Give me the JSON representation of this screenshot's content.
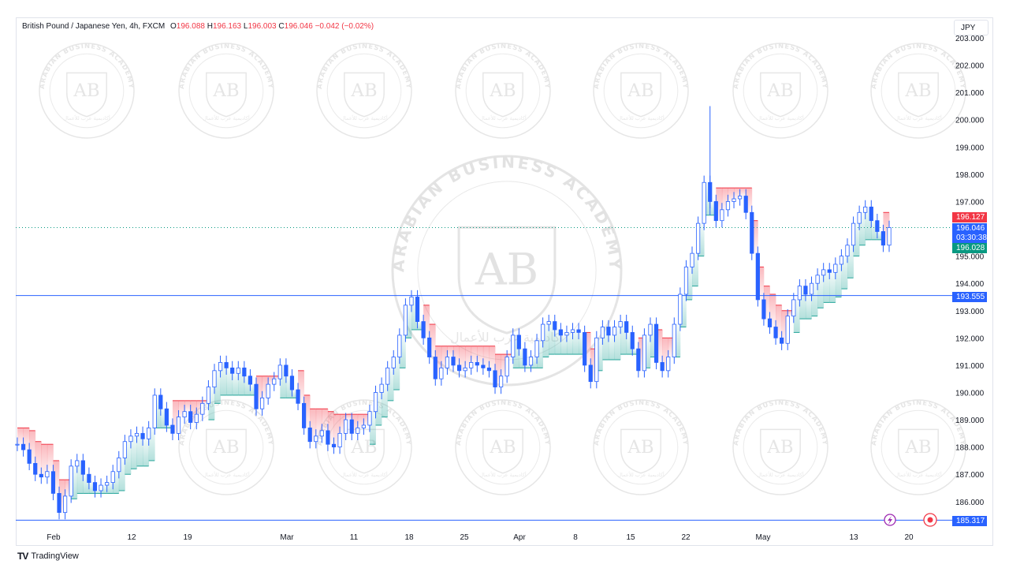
{
  "header": {
    "symbol": "British Pound / Japanese Yen, 4h, FXCM",
    "o_label": "O",
    "o_value": "196.088",
    "h_label": "H",
    "h_value": "196.163",
    "l_label": "L",
    "l_value": "196.003",
    "c_label": "C",
    "c_value": "196.046",
    "change": "−0.042 (−0.02%)"
  },
  "currency": "JPY",
  "price_tags": {
    "red": "196.127",
    "last": "196.046",
    "countdown": "03:30:38",
    "green": "196.028",
    "level_upper": "193.555",
    "level_lower": "185.317"
  },
  "watermark": {
    "text": "ARABIAN BUSINESS ACADEMY",
    "initials": "AB",
    "arabic": "أكاديمية عرب للأعمال"
  },
  "footer": {
    "brand": "TradingView",
    "logo": "TV"
  },
  "icons": {
    "alert": "lightning-icon",
    "replay": "target-icon"
  },
  "colors": {
    "up": "#26a69a",
    "down": "#f23645",
    "candle": "#2962ff",
    "level": "#2962ff",
    "grid": "#e0e3eb"
  },
  "chart_data": {
    "type": "line",
    "x_tick_labels": [
      "Feb",
      "12",
      "19",
      "Mar",
      "11",
      "18",
      "25",
      "Apr",
      "8",
      "15",
      "22",
      "May",
      "13",
      "20"
    ],
    "y_tick_labels": [
      "186.000",
      "187.000",
      "188.000",
      "189.000",
      "190.000",
      "191.000",
      "192.000",
      "193.000",
      "194.000",
      "195.000",
      "196.000",
      "197.000",
      "198.000",
      "199.000",
      "200.000",
      "201.000",
      "202.000",
      "203.000"
    ],
    "ylim": [
      185.3,
      203.0
    ],
    "horizontal_levels": [
      193.555,
      185.317
    ],
    "series": [
      {
        "values": [
          188.1,
          187.9,
          187.4,
          187.0,
          186.9,
          187.1,
          186.3,
          185.6,
          186.2,
          187.3,
          187.5,
          187.0,
          186.7,
          186.4,
          186.6,
          186.7,
          187.1,
          187.6,
          188.2,
          188.4,
          188.5,
          188.3,
          188.7,
          189.9,
          189.4,
          188.8,
          188.5,
          189.1,
          189.3,
          188.9,
          189.2,
          189.6,
          190.2,
          190.8,
          191.1,
          190.9,
          190.7,
          190.9,
          190.6,
          190.3,
          189.4,
          189.8,
          190.3,
          190.5,
          191.0,
          190.6,
          190.1,
          189.6,
          188.7,
          188.2,
          188.4,
          188.6,
          188.1,
          188.0,
          188.5,
          189.0,
          188.5,
          188.7,
          188.8,
          189.3,
          190.0,
          190.3,
          190.9,
          191.3,
          192.1,
          193.2,
          193.5,
          192.6,
          192.0,
          191.3,
          190.5,
          190.9,
          191.3,
          191.0,
          190.8,
          190.9,
          191.1,
          191.0,
          190.9,
          190.8,
          190.2,
          190.6,
          191.3,
          192.1,
          191.6,
          191.0,
          191.3,
          191.9,
          192.5,
          192.6,
          192.3,
          192.1,
          192.2,
          192.3,
          192.2,
          191.0,
          190.4,
          192.0,
          192.4,
          192.1,
          192.4,
          192.6,
          192.2,
          191.6,
          190.8,
          192.1,
          192.5,
          191.1,
          190.8,
          191.3,
          192.5,
          193.6,
          194.6,
          195.1,
          196.2,
          197.7,
          197.0,
          196.3,
          196.7,
          197.0,
          197.1,
          197.2,
          196.6,
          195.1,
          193.4,
          192.7,
          192.4,
          192.0,
          191.8,
          192.8,
          193.4,
          193.9,
          193.6,
          194.0,
          194.3,
          194.5,
          194.4,
          194.7,
          195.0,
          195.4,
          196.2,
          196.6,
          196.8,
          196.3,
          195.9,
          195.4,
          196.046
        ]
      }
    ]
  }
}
